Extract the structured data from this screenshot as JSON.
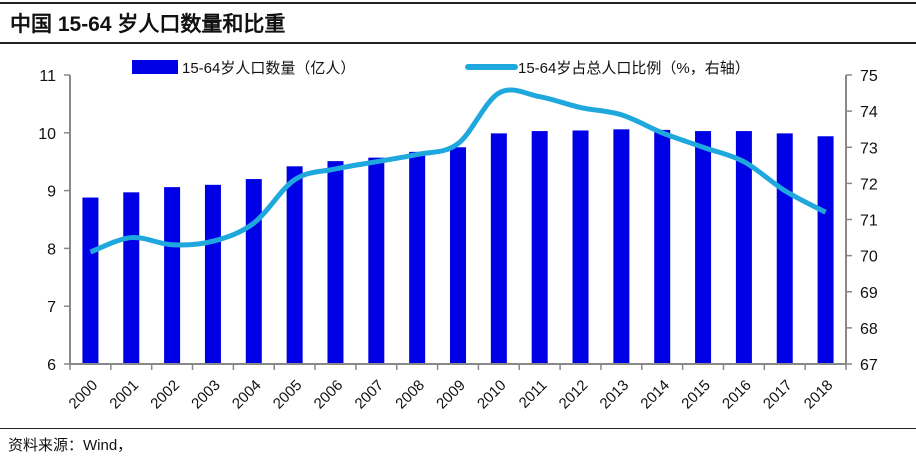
{
  "chart_data": {
    "type": "bar+line",
    "title": "中国 15-64 岁人口数量和比重",
    "categories": [
      "2000",
      "2001",
      "2002",
      "2003",
      "2004",
      "2005",
      "2006",
      "2007",
      "2008",
      "2009",
      "2010",
      "2011",
      "2012",
      "2013",
      "2014",
      "2015",
      "2016",
      "2017",
      "2018"
    ],
    "series": [
      {
        "name": "15-64岁人口数量（亿人）",
        "type": "bar",
        "axis": "left",
        "color": "#0000e6",
        "values": [
          8.88,
          8.97,
          9.06,
          9.1,
          9.2,
          9.42,
          9.51,
          9.57,
          9.67,
          9.75,
          9.99,
          10.03,
          10.04,
          10.06,
          10.05,
          10.03,
          10.03,
          9.99,
          9.94
        ]
      },
      {
        "name": "15-64岁占总人口比例（%，右轴）",
        "type": "line",
        "axis": "right",
        "color": "#1fa8de",
        "values": [
          70.1,
          70.5,
          70.3,
          70.4,
          70.9,
          72.1,
          72.4,
          72.6,
          72.8,
          73.1,
          74.5,
          74.4,
          74.1,
          73.9,
          73.4,
          73.0,
          72.6,
          71.8,
          71.2
        ]
      }
    ],
    "ylim_left": [
      6,
      11
    ],
    "yticks_left": [
      "6",
      "7",
      "8",
      "9",
      "10",
      "11"
    ],
    "ylim_right": [
      67,
      75
    ],
    "yticks_right": [
      "67",
      "68",
      "69",
      "70",
      "71",
      "72",
      "73",
      "74",
      "75"
    ],
    "legend": "top"
  },
  "source": "资料来源：Wind，"
}
